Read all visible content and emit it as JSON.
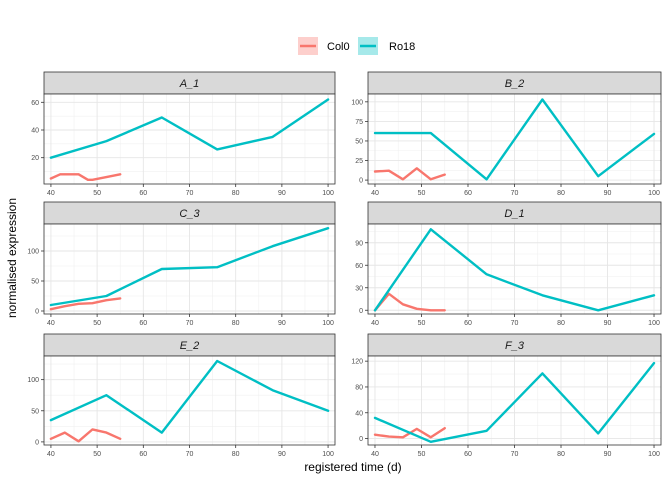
{
  "chart_data": {
    "type": "line",
    "facet": "small-multiples",
    "xlabel": "registered time (d)",
    "ylabel": "normalised expression",
    "legend": {
      "position": "top",
      "entries": [
        {
          "name": "Col0",
          "color": "#F8766D"
        },
        {
          "name": "Ro18",
          "color": "#00BFC4"
        }
      ]
    },
    "xlim": [
      38.5,
      101.5
    ],
    "xticks": [
      40,
      50,
      60,
      70,
      80,
      90,
      100
    ],
    "grid": true,
    "panels": [
      {
        "title": "A_1",
        "ylim": [
          1,
          66
        ],
        "yticks": [
          20,
          40,
          60
        ],
        "series": [
          {
            "name": "Col0",
            "x": [
              40,
              42,
              43,
              46,
              48,
              49,
              52,
              55
            ],
            "y": [
              5,
              8,
              8,
              8,
              4,
              4,
              6,
              8
            ]
          },
          {
            "name": "Ro18",
            "x": [
              40,
              52,
              64,
              76,
              88,
              100
            ],
            "y": [
              20,
              32,
              49,
              26,
              35,
              62
            ]
          }
        ]
      },
      {
        "title": "B_2",
        "ylim": [
          -5,
          110
        ],
        "yticks": [
          0,
          25,
          50,
          75,
          100
        ],
        "series": [
          {
            "name": "Col0",
            "x": [
              40,
              43,
              46,
              49,
              52,
              55
            ],
            "y": [
              11,
              12,
              1,
              15,
              1,
              7
            ]
          },
          {
            "name": "Ro18",
            "x": [
              40,
              52,
              64,
              76,
              88,
              100
            ],
            "y": [
              60,
              60,
              1,
              103,
              5,
              59
            ]
          }
        ]
      },
      {
        "title": "C_3",
        "ylim": [
          -5,
          145
        ],
        "yticks": [
          0,
          50,
          100
        ],
        "series": [
          {
            "name": "Col0",
            "x": [
              40,
              43,
              46,
              49,
              52,
              55
            ],
            "y": [
              3,
              8,
              12,
              13,
              18,
              21
            ]
          },
          {
            "name": "Ro18",
            "x": [
              40,
              52,
              64,
              76,
              88,
              100
            ],
            "y": [
              10,
              25,
              70,
              73,
              108,
              138
            ]
          }
        ]
      },
      {
        "title": "D_1",
        "ylim": [
          -5,
          115
        ],
        "yticks": [
          0,
          30,
          60,
          90
        ],
        "series": [
          {
            "name": "Col0",
            "x": [
              40,
              43,
              46,
              49,
              52,
              55
            ],
            "y": [
              0,
              22,
              8,
              2,
              0,
              0
            ]
          },
          {
            "name": "Ro18",
            "x": [
              40,
              52,
              64,
              76,
              88,
              100
            ],
            "y": [
              0,
              108,
              48,
              20,
              0,
              20
            ]
          }
        ]
      },
      {
        "title": "E_2",
        "ylim": [
          -5,
          138
        ],
        "yticks": [
          0,
          50,
          100
        ],
        "series": [
          {
            "name": "Col0",
            "x": [
              40,
              43,
              46,
              49,
              52,
              55
            ],
            "y": [
              5,
              15,
              1,
              20,
              15,
              5
            ]
          },
          {
            "name": "Ro18",
            "x": [
              40,
              52,
              64,
              76,
              88,
              100
            ],
            "y": [
              35,
              75,
              15,
              130,
              83,
              50
            ]
          }
        ]
      },
      {
        "title": "F_3",
        "ylim": [
          -10,
          128
        ],
        "yticks": [
          0,
          40,
          80,
          120
        ],
        "series": [
          {
            "name": "Col0",
            "x": [
              40,
              43,
              46,
              49,
              52,
              55
            ],
            "y": [
              6,
              3,
              2,
              15,
              2,
              16
            ]
          },
          {
            "name": "Ro18",
            "x": [
              40,
              52,
              64,
              76,
              88,
              100
            ],
            "y": [
              32,
              -5,
              12,
              101,
              8,
              117
            ]
          }
        ]
      }
    ]
  }
}
